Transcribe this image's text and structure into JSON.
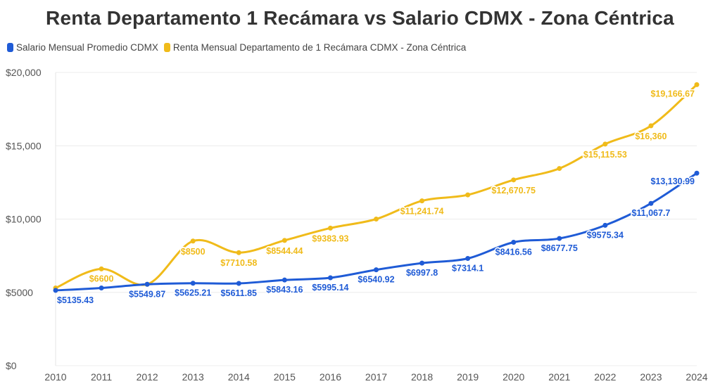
{
  "chart_data": {
    "type": "line",
    "title": "Renta Departamento 1 Recámara vs Salario CDMX - Zona Céntrica",
    "xlabel": "",
    "ylabel": "",
    "categories": [
      "2010",
      "2011",
      "2012",
      "2013",
      "2014",
      "2015",
      "2016",
      "2017",
      "2018",
      "2019",
      "2020",
      "2021",
      "2022",
      "2023",
      "2024"
    ],
    "ylim": [
      0,
      20000
    ],
    "yticks": [
      0,
      5000,
      10000,
      15000,
      20000
    ],
    "ytick_labels": [
      "$0",
      "$5000",
      "$10,000",
      "$15,000",
      "$20,000"
    ],
    "grid": true,
    "legend_position": "top-left",
    "series": [
      {
        "name": "Salario Mensual Promedio CDMX",
        "color": "#1f5bd6",
        "values": [
          5135.43,
          5300,
          5549.87,
          5625.21,
          5611.85,
          5843.16,
          5995.14,
          6540.92,
          6997.8,
          7314.1,
          8416.56,
          8677.75,
          9575.34,
          11067.7,
          13130.99
        ],
        "labels": [
          "$5135.43",
          "",
          "$5549.87",
          "$5625.21",
          "$5611.85",
          "$5843.16",
          "$5995.14",
          "$6540.92",
          "$6997.8",
          "$7314.1",
          "$8416.56",
          "$8677.75",
          "$9575.34",
          "$11,067.7",
          "$13,130.99"
        ]
      },
      {
        "name": "Renta Mensual Departamento de 1 Recámara CDMX - Zona Céntrica",
        "color": "#f0bb1a",
        "values": [
          5300,
          6600,
          5549.87,
          8500,
          7710.58,
          8544.44,
          9383.93,
          10000,
          11241.74,
          11650,
          12670.75,
          13450,
          15115.53,
          16360,
          19166.67
        ],
        "labels": [
          "",
          "$6600",
          "",
          "$8500",
          "$7710.58",
          "$8544.44",
          "$9383.93",
          "",
          "$11,241.74",
          "",
          "$12,670.75",
          "",
          "$15,115.53",
          "$16,360",
          "$19,166.67"
        ]
      }
    ]
  }
}
